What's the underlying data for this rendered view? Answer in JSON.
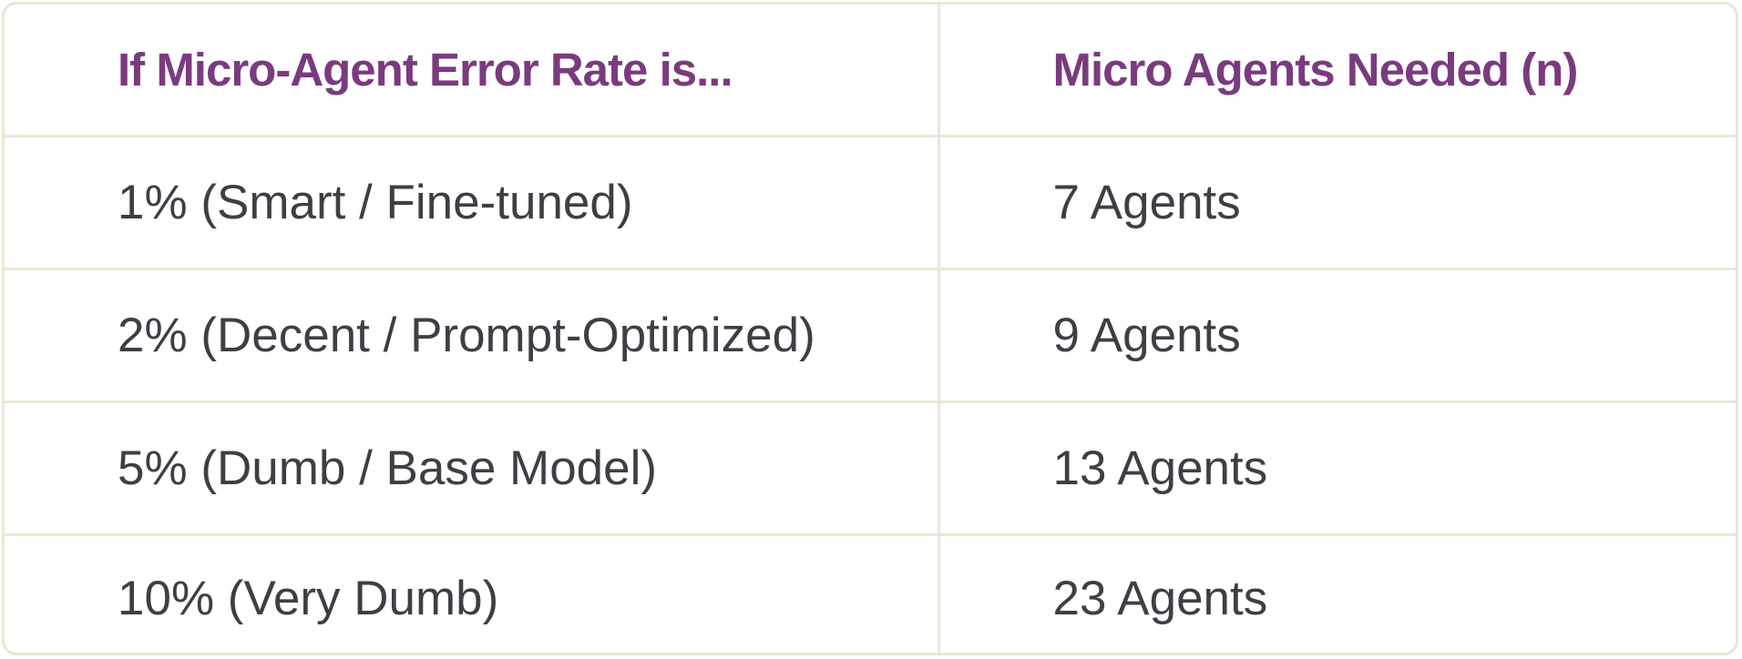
{
  "table": {
    "headers": [
      "If Micro-Agent Error Rate is...",
      "Micro Agents Needed (n)"
    ],
    "rows": [
      [
        "1% (Smart / Fine-tuned)",
        "7 Agents"
      ],
      [
        "2% (Decent / Prompt-Optimized)",
        "9 Agents"
      ],
      [
        "5% (Dumb / Base Model)",
        "13 Agents"
      ],
      [
        "10% (Very Dumb)",
        "23 Agents"
      ]
    ]
  },
  "colors": {
    "header_text": "#7a3b7e",
    "body_text": "#3e3f45",
    "border": "#ebe6d6"
  }
}
